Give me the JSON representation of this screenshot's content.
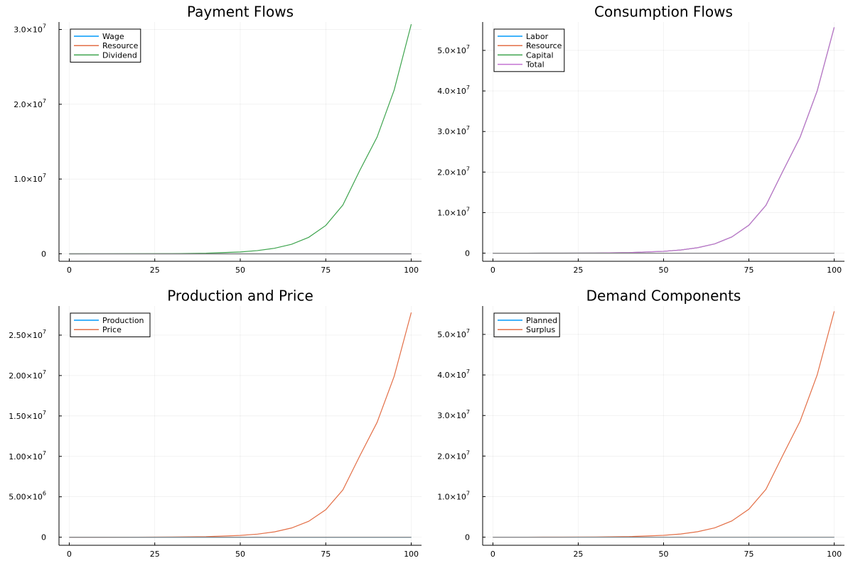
{
  "chart_data": [
    {
      "type": "line",
      "title": "Payment Flows",
      "xlabel": "",
      "ylabel": "",
      "xlim": [
        -3,
        103
      ],
      "ylim": [
        -1000000,
        31000000
      ],
      "xticks": [
        0,
        25,
        50,
        75,
        100
      ],
      "yticks": [
        {
          "value": 0,
          "base": "0",
          "exp": ""
        },
        {
          "value": 10000000,
          "base": "1.0×10",
          "exp": "7"
        },
        {
          "value": 20000000,
          "base": "2.0×10",
          "exp": "7"
        },
        {
          "value": 30000000,
          "base": "3.0×10",
          "exp": "7"
        }
      ],
      "grid": true,
      "legend_position": "top-left",
      "series": [
        {
          "name": "Wage",
          "color": "#009AFA",
          "x": [
            0,
            100
          ],
          "y": [
            0,
            0
          ]
        },
        {
          "name": "Resource",
          "color": "#E36F47",
          "x": [
            0,
            100
          ],
          "y": [
            0,
            0
          ]
        },
        {
          "name": "Dividend",
          "color": "#3EA44E",
          "x": [
            0,
            10,
            20,
            30,
            40,
            50,
            55,
            60,
            65,
            70,
            75,
            80,
            85,
            90,
            95,
            100
          ],
          "y": [
            0,
            2000,
            8000,
            25000,
            80000,
            250000,
            430000,
            740000,
            1270000,
            2200000,
            3790000,
            6520000,
            11200000,
            15600000,
            21900000,
            30700000
          ]
        },
        {
          "name": "",
          "color": "#808080",
          "x": [
            0,
            100
          ],
          "y": [
            0,
            0
          ]
        }
      ]
    },
    {
      "type": "line",
      "title": "Consumption Flows",
      "xlabel": "",
      "ylabel": "",
      "xlim": [
        -3,
        103
      ],
      "ylim": [
        -2000000,
        57000000
      ],
      "xticks": [
        0,
        25,
        50,
        75,
        100
      ],
      "yticks": [
        {
          "value": 0,
          "base": "0",
          "exp": ""
        },
        {
          "value": 10000000,
          "base": "1.0×10",
          "exp": "7"
        },
        {
          "value": 20000000,
          "base": "2.0×10",
          "exp": "7"
        },
        {
          "value": 30000000,
          "base": "3.0×10",
          "exp": "7"
        },
        {
          "value": 40000000,
          "base": "4.0×10",
          "exp": "7"
        },
        {
          "value": 50000000,
          "base": "5.0×10",
          "exp": "7"
        }
      ],
      "grid": true,
      "legend_position": "top-left",
      "series": [
        {
          "name": "Labor",
          "color": "#009AFA",
          "x": [
            0,
            100
          ],
          "y": [
            0,
            0
          ]
        },
        {
          "name": "Resource",
          "color": "#E36F47",
          "x": [
            0,
            100
          ],
          "y": [
            0,
            0
          ]
        },
        {
          "name": "Capital",
          "color": "#3EA44E",
          "x": [
            0,
            10,
            20,
            30,
            40,
            50,
            55,
            60,
            65,
            70,
            75,
            80,
            85,
            90,
            95,
            100
          ],
          "y": [
            0,
            4000,
            15000,
            45000,
            145000,
            450000,
            780000,
            1350000,
            2300000,
            4000000,
            6900000,
            11800000,
            20300000,
            28600000,
            40000000,
            55700000
          ]
        },
        {
          "name": "Total",
          "color": "#C371D2",
          "x": [
            0,
            10,
            20,
            30,
            40,
            50,
            55,
            60,
            65,
            70,
            75,
            80,
            85,
            90,
            95,
            100
          ],
          "y": [
            0,
            4000,
            15000,
            45000,
            145000,
            450000,
            780000,
            1350000,
            2300000,
            4000000,
            6900000,
            11800000,
            20300000,
            28600000,
            40000000,
            55700000
          ]
        },
        {
          "name": "",
          "color": "#808080",
          "x": [
            0,
            100
          ],
          "y": [
            0,
            0
          ]
        }
      ]
    },
    {
      "type": "line",
      "title": "Production and Price",
      "xlabel": "",
      "ylabel": "",
      "xlim": [
        -3,
        103
      ],
      "ylim": [
        -1000000,
        28600000
      ],
      "xticks": [
        0,
        25,
        50,
        75,
        100
      ],
      "yticks": [
        {
          "value": 0,
          "base": "0",
          "exp": ""
        },
        {
          "value": 5000000,
          "base": "5.00×10",
          "exp": "6"
        },
        {
          "value": 10000000,
          "base": "1.00×10",
          "exp": "7"
        },
        {
          "value": 15000000,
          "base": "1.50×10",
          "exp": "7"
        },
        {
          "value": 20000000,
          "base": "2.00×10",
          "exp": "7"
        },
        {
          "value": 25000000,
          "base": "2.50×10",
          "exp": "7"
        }
      ],
      "grid": true,
      "legend_position": "top-left",
      "series": [
        {
          "name": "Production",
          "color": "#009AFA",
          "x": [
            0,
            100
          ],
          "y": [
            0,
            0
          ]
        },
        {
          "name": "Price",
          "color": "#E36F47",
          "x": [
            0,
            10,
            20,
            30,
            40,
            50,
            55,
            60,
            65,
            70,
            75,
            80,
            85,
            90,
            95,
            100
          ],
          "y": [
            0,
            2000,
            7000,
            22000,
            70000,
            220000,
            380000,
            660000,
            1140000,
            1970000,
            3400000,
            5850000,
            10100000,
            14200000,
            19900000,
            27800000
          ]
        },
        {
          "name": "",
          "color": "#808080",
          "x": [
            0,
            100
          ],
          "y": [
            0,
            0
          ]
        }
      ]
    },
    {
      "type": "line",
      "title": "Demand Components",
      "xlabel": "",
      "ylabel": "",
      "xlim": [
        -3,
        103
      ],
      "ylim": [
        -2000000,
        57000000
      ],
      "xticks": [
        0,
        25,
        50,
        75,
        100
      ],
      "yticks": [
        {
          "value": 0,
          "base": "0",
          "exp": ""
        },
        {
          "value": 10000000,
          "base": "1.0×10",
          "exp": "7"
        },
        {
          "value": 20000000,
          "base": "2.0×10",
          "exp": "7"
        },
        {
          "value": 30000000,
          "base": "3.0×10",
          "exp": "7"
        },
        {
          "value": 40000000,
          "base": "4.0×10",
          "exp": "7"
        },
        {
          "value": 50000000,
          "base": "5.0×10",
          "exp": "7"
        }
      ],
      "grid": true,
      "legend_position": "top-left",
      "series": [
        {
          "name": "Planned",
          "color": "#009AFA",
          "x": [
            0,
            100
          ],
          "y": [
            0,
            0
          ]
        },
        {
          "name": "Surplus",
          "color": "#E36F47",
          "x": [
            0,
            10,
            20,
            30,
            40,
            50,
            55,
            60,
            65,
            70,
            75,
            80,
            85,
            90,
            95,
            100
          ],
          "y": [
            0,
            4000,
            15000,
            45000,
            145000,
            450000,
            780000,
            1350000,
            2300000,
            4000000,
            6900000,
            11800000,
            20300000,
            28600000,
            40000000,
            55700000
          ]
        },
        {
          "name": "",
          "color": "#808080",
          "x": [
            0,
            100
          ],
          "y": [
            0,
            0
          ]
        }
      ]
    }
  ]
}
